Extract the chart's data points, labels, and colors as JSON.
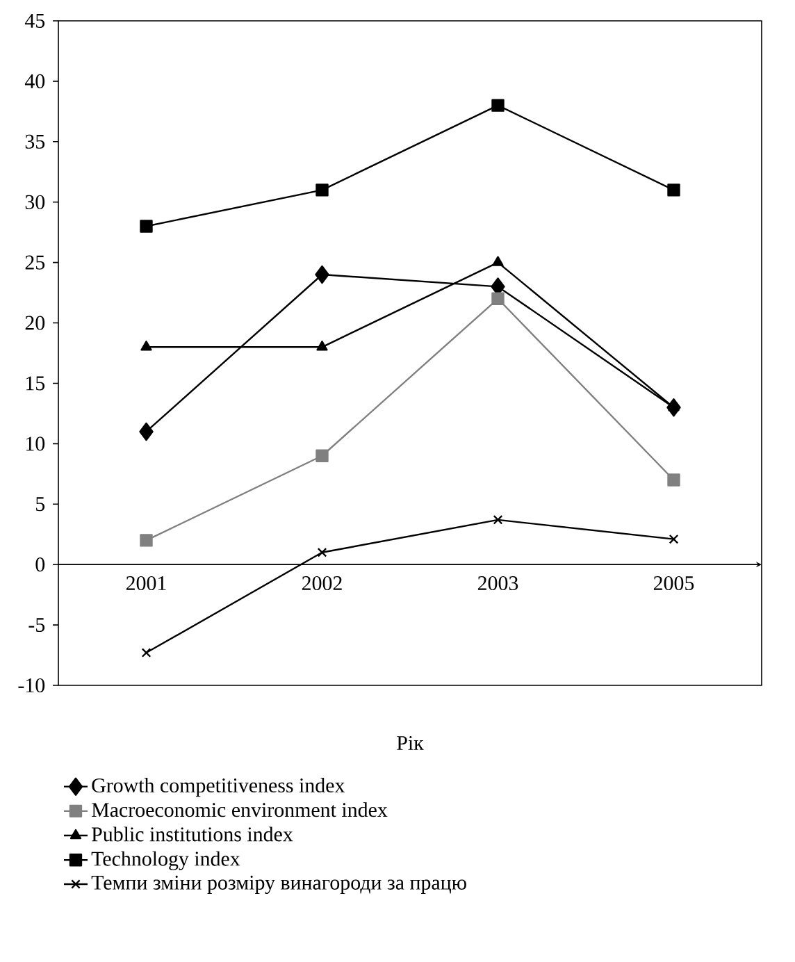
{
  "chart_data": {
    "type": "line",
    "xlabel": "Рік",
    "categories": [
      "2001",
      "2002",
      "2003",
      "2005"
    ],
    "ylim": [
      -10,
      45
    ],
    "yticks": [
      -10,
      -5,
      0,
      5,
      10,
      15,
      20,
      25,
      30,
      35,
      40,
      45
    ],
    "grid": false,
    "legend": "bottom",
    "line_style": "solid",
    "series": [
      {
        "name": "Growth competitiveness index",
        "color": "#000000",
        "marker": "diamond",
        "values": [
          11,
          24,
          23,
          13
        ]
      },
      {
        "name": "Macroeconomic environment index",
        "color": "#808080",
        "marker": "square",
        "values": [
          2,
          9,
          22,
          7
        ]
      },
      {
        "name": "Public institutions index",
        "color": "#000000",
        "marker": "triangle",
        "values": [
          18,
          18,
          25,
          13
        ]
      },
      {
        "name": "Technology index",
        "color": "#000000",
        "marker": "square",
        "values": [
          28,
          31,
          38,
          31
        ]
      },
      {
        "name": "Темпи зміни розміру винагороди за працю",
        "color": "#000000",
        "marker": "cross",
        "values": [
          -7.3,
          1,
          3.7,
          2.1
        ]
      }
    ]
  }
}
